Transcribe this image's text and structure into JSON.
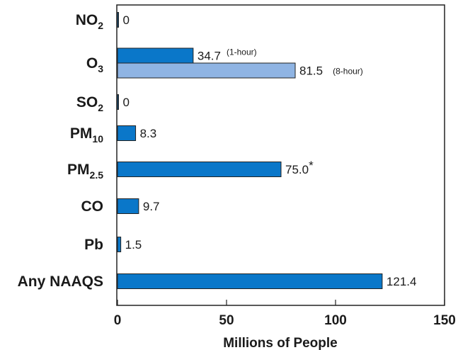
{
  "chart_data": {
    "type": "bar",
    "orientation": "horizontal",
    "xlabel": "Millions of People",
    "xlim": [
      0,
      150
    ],
    "xticks": [
      0,
      50,
      100,
      150
    ],
    "grid": false,
    "colors": {
      "primary": "#0a77c9",
      "secondary": "#8fb4e3",
      "frame": "#222222"
    },
    "categories": [
      {
        "name": "NO",
        "sub": "2",
        "bars": [
          {
            "value": 0,
            "label": "0"
          }
        ]
      },
      {
        "name": "O",
        "sub": "3",
        "bars": [
          {
            "value": 34.7,
            "label": "34.7",
            "note": "(1-hour)",
            "style": "primary"
          },
          {
            "value": 81.5,
            "label": "81.5",
            "note": "(8-hour)",
            "style": "secondary"
          }
        ]
      },
      {
        "name": "SO",
        "sub": "2",
        "bars": [
          {
            "value": 0,
            "label": "0"
          }
        ]
      },
      {
        "name": "PM",
        "sub": "10",
        "bars": [
          {
            "value": 8.3,
            "label": "8.3"
          }
        ]
      },
      {
        "name": "PM",
        "sub": "2.5",
        "bars": [
          {
            "value": 75.0,
            "label": "75.0",
            "suffix": "*"
          }
        ]
      },
      {
        "name": "CO",
        "sub": "",
        "bars": [
          {
            "value": 9.7,
            "label": "9.7"
          }
        ]
      },
      {
        "name": "Pb",
        "sub": "",
        "bars": [
          {
            "value": 1.5,
            "label": "1.5"
          }
        ]
      },
      {
        "name": "Any NAAQS",
        "sub": "",
        "bars": [
          {
            "value": 121.4,
            "label": "121.4"
          }
        ]
      }
    ]
  }
}
